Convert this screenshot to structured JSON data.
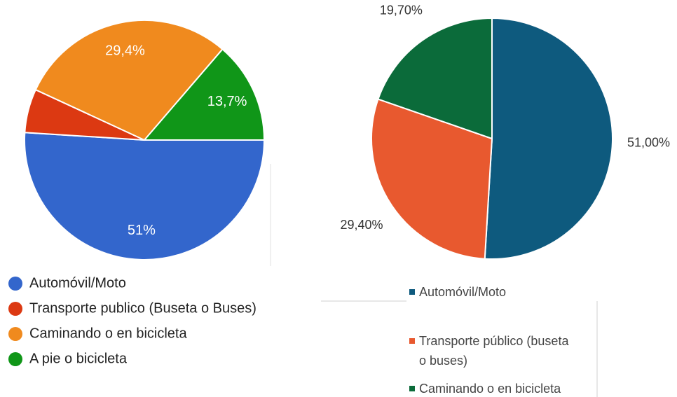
{
  "chart_data": [
    {
      "type": "pie",
      "categories": [
        "Automóvil/Moto",
        "Transporte publico (Buseta o Buses)",
        "Caminando o en bicicleta",
        "A pie o bicicleta"
      ],
      "values": [
        51,
        5.9,
        29.4,
        13.7
      ],
      "value_labels": [
        "51%",
        null,
        "29,4%",
        "13,7%"
      ],
      "colors": [
        "#3366cc",
        "#dc3912",
        "#f08a1e",
        "#109618"
      ],
      "legend": "bottom-left"
    },
    {
      "type": "pie",
      "categories": [
        "Automóvil/Moto",
        "Transporte público (buseta o buses)",
        "Caminando o en bicicleta"
      ],
      "values": [
        51,
        29.4,
        19.7
      ],
      "value_labels": [
        "51,00%",
        "29,40%",
        "19,70%"
      ],
      "colors": [
        "#0e5a7e",
        "#e8592f",
        "#0b6b3a"
      ],
      "legend": "bottom"
    }
  ]
}
